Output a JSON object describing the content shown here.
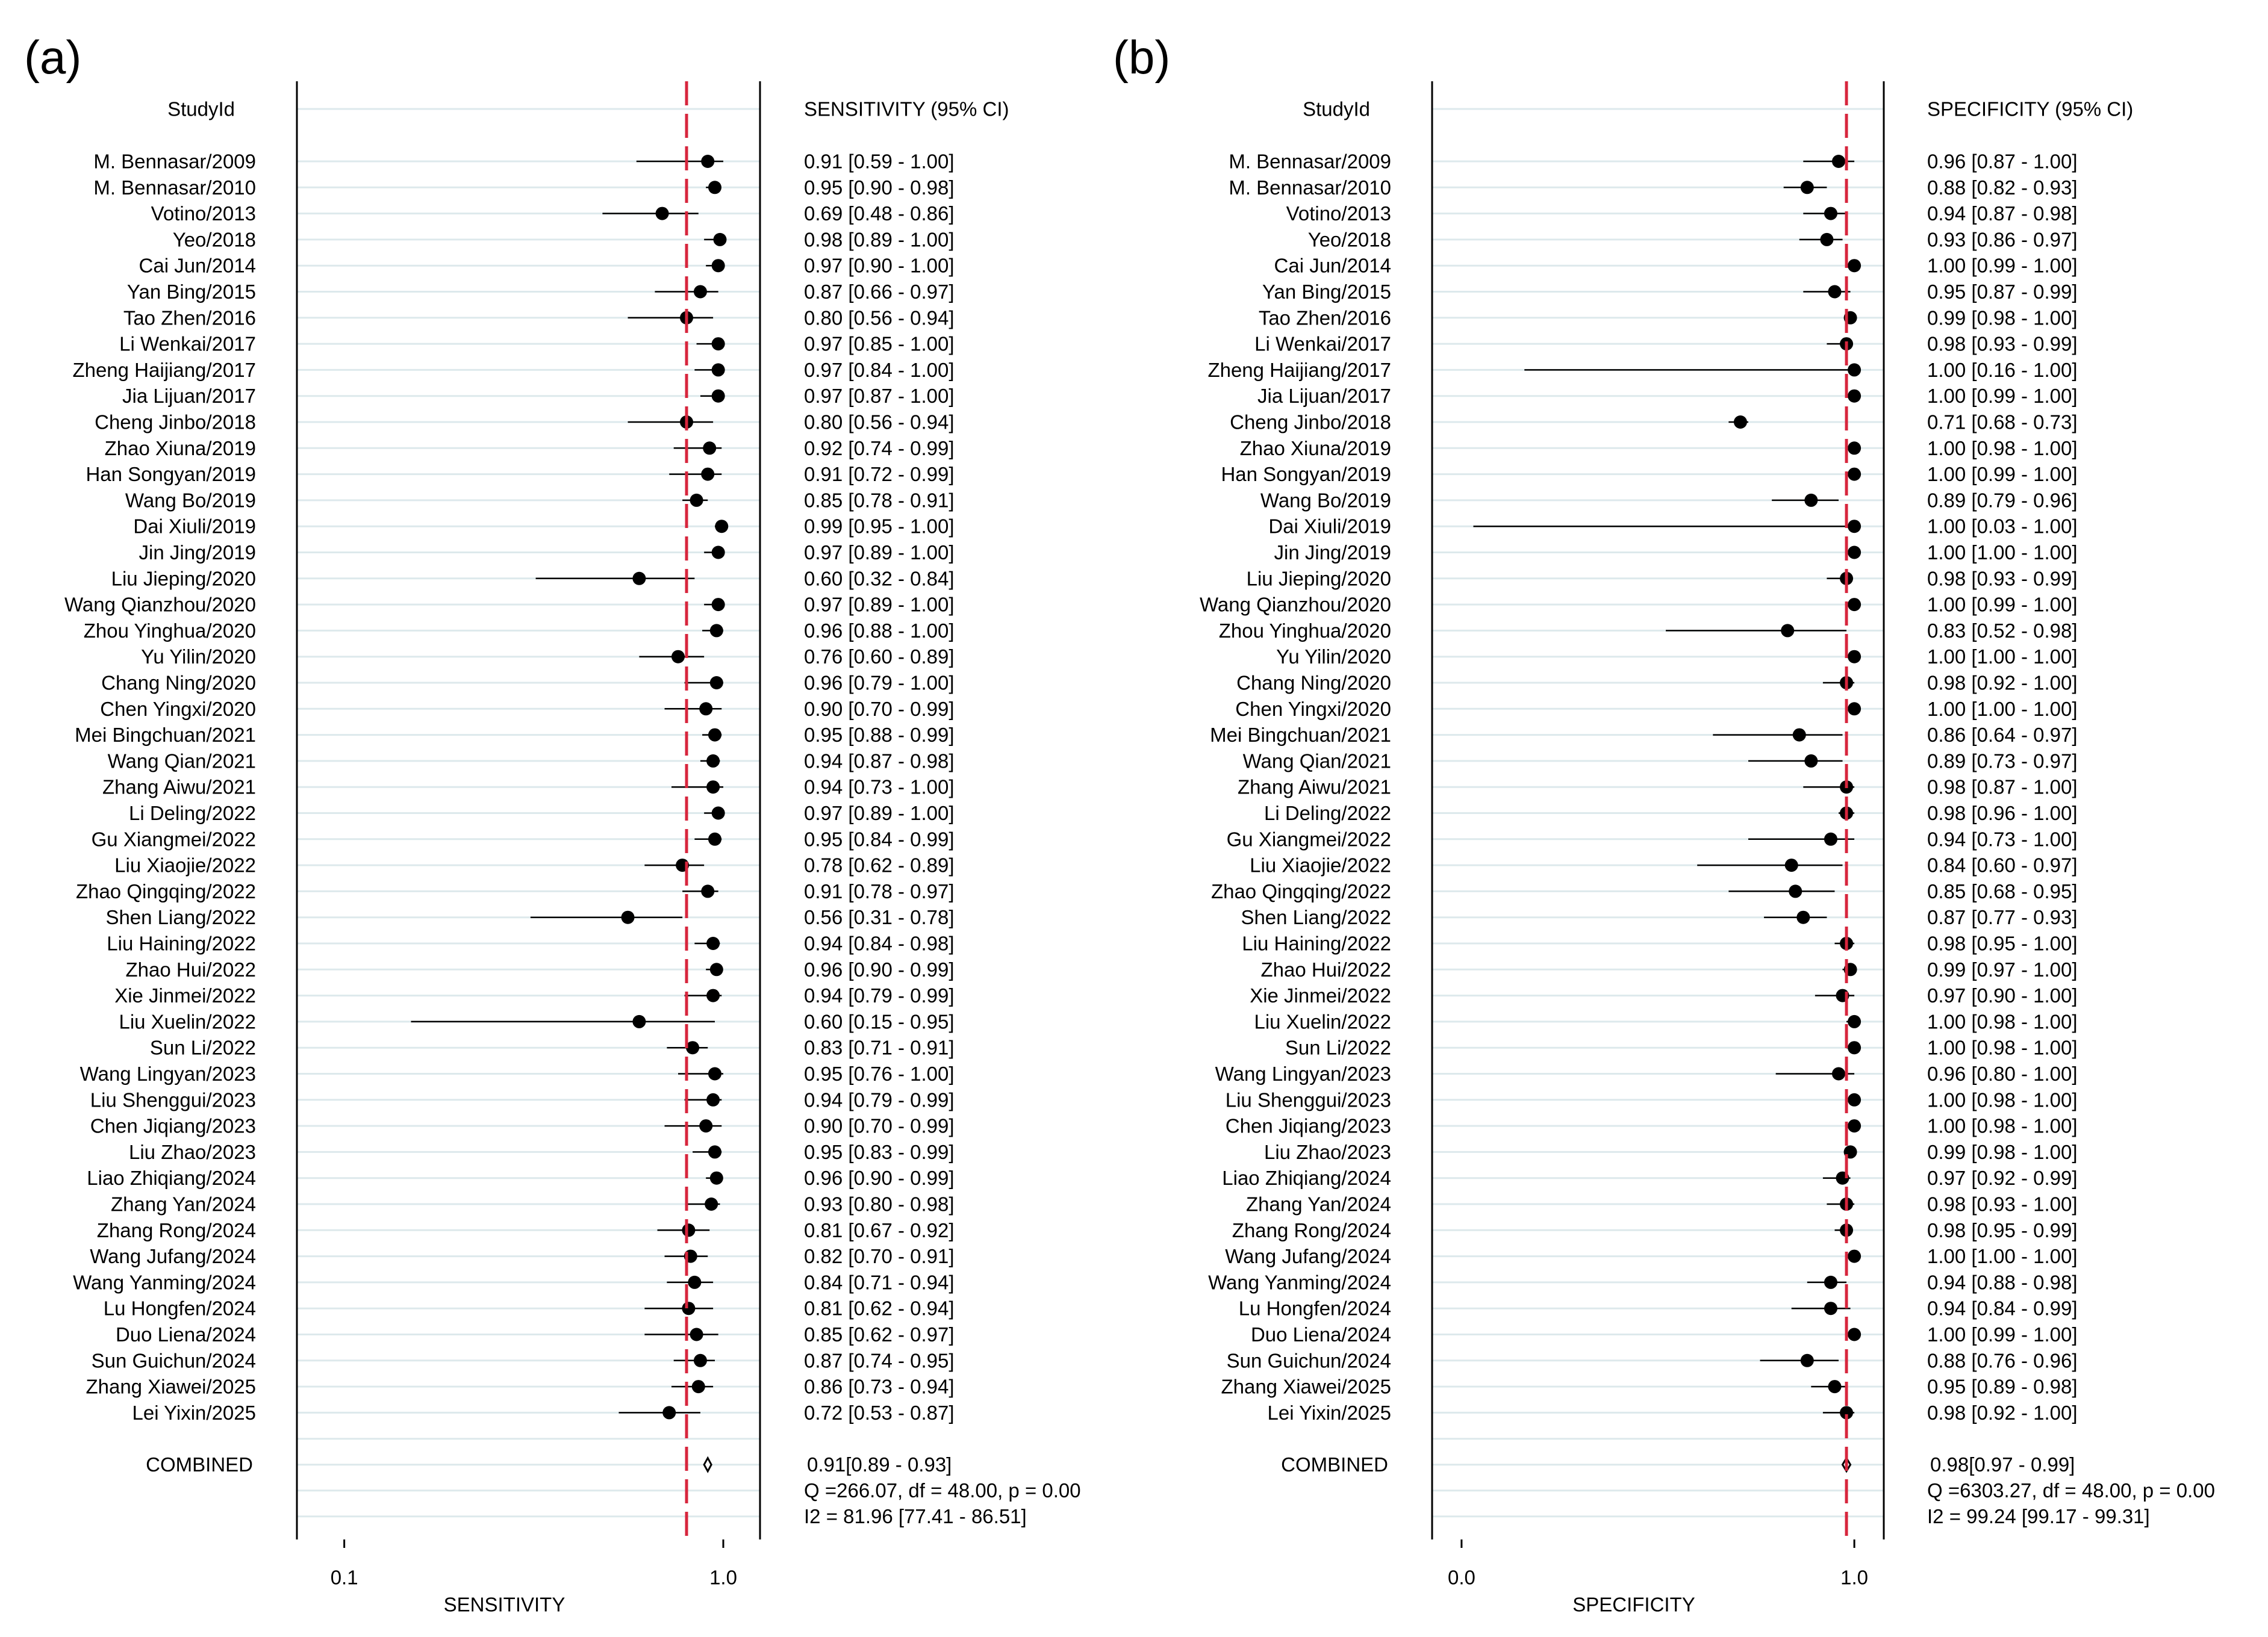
{
  "chart_data": [
    {
      "type": "forest",
      "panel_label": "(a)",
      "title": "",
      "xlabel": "SENSITIVITY",
      "scale": "log",
      "x_ticks": [
        "0.1",
        "1.0"
      ],
      "xlim": [
        0.075,
        1.25
      ],
      "reference_line": 0.8,
      "studyid_header": "StudyId",
      "ci_header": "SENSITIVITY (95% CI)",
      "studies": [
        {
          "study": "M. Bennasar/2009",
          "est": 0.91,
          "lo": 0.59,
          "hi": 1.0,
          "label": "0.91 [0.59 - 1.00]"
        },
        {
          "study": "M. Bennasar/2010",
          "est": 0.95,
          "lo": 0.9,
          "hi": 0.98,
          "label": "0.95 [0.90 - 0.98]"
        },
        {
          "study": "Votino/2013",
          "est": 0.69,
          "lo": 0.48,
          "hi": 0.86,
          "label": "0.69 [0.48 - 0.86]"
        },
        {
          "study": "Yeo/2018",
          "est": 0.98,
          "lo": 0.89,
          "hi": 1.0,
          "label": "0.98 [0.89 - 1.00]"
        },
        {
          "study": "Cai Jun/2014",
          "est": 0.97,
          "lo": 0.9,
          "hi": 1.0,
          "label": "0.97 [0.90 - 1.00]"
        },
        {
          "study": "Yan Bing/2015",
          "est": 0.87,
          "lo": 0.66,
          "hi": 0.97,
          "label": "0.87 [0.66 - 0.97]"
        },
        {
          "study": "Tao Zhen/2016",
          "est": 0.8,
          "lo": 0.56,
          "hi": 0.94,
          "label": "0.80 [0.56 - 0.94]"
        },
        {
          "study": "Li Wenkai/2017",
          "est": 0.97,
          "lo": 0.85,
          "hi": 1.0,
          "label": "0.97 [0.85 - 1.00]"
        },
        {
          "study": "Zheng Haijiang/2017",
          "est": 0.97,
          "lo": 0.84,
          "hi": 1.0,
          "label": "0.97 [0.84 - 1.00]"
        },
        {
          "study": "Jia Lijuan/2017",
          "est": 0.97,
          "lo": 0.87,
          "hi": 1.0,
          "label": "0.97 [0.87 - 1.00]"
        },
        {
          "study": "Cheng Jinbo/2018",
          "est": 0.8,
          "lo": 0.56,
          "hi": 0.94,
          "label": "0.80 [0.56 - 0.94]"
        },
        {
          "study": "Zhao Xiuna/2019",
          "est": 0.92,
          "lo": 0.74,
          "hi": 0.99,
          "label": "0.92 [0.74 - 0.99]"
        },
        {
          "study": "Han Songyan/2019",
          "est": 0.91,
          "lo": 0.72,
          "hi": 0.99,
          "label": "0.91 [0.72 - 0.99]"
        },
        {
          "study": "Wang Bo/2019",
          "est": 0.85,
          "lo": 0.78,
          "hi": 0.91,
          "label": "0.85 [0.78 - 0.91]"
        },
        {
          "study": "Dai Xiuli/2019",
          "est": 0.99,
          "lo": 0.95,
          "hi": 1.0,
          "label": "0.99 [0.95 - 1.00]"
        },
        {
          "study": "Jin Jing/2019",
          "est": 0.97,
          "lo": 0.89,
          "hi": 1.0,
          "label": "0.97 [0.89 - 1.00]"
        },
        {
          "study": "Liu Jieping/2020",
          "est": 0.6,
          "lo": 0.32,
          "hi": 0.84,
          "label": "0.60 [0.32 - 0.84]"
        },
        {
          "study": "Wang Qianzhou/2020",
          "est": 0.97,
          "lo": 0.89,
          "hi": 1.0,
          "label": "0.97 [0.89 - 1.00]"
        },
        {
          "study": "Zhou Yinghua/2020",
          "est": 0.96,
          "lo": 0.88,
          "hi": 1.0,
          "label": "0.96 [0.88 - 1.00]"
        },
        {
          "study": "Yu Yilin/2020",
          "est": 0.76,
          "lo": 0.6,
          "hi": 0.89,
          "label": "0.76 [0.60 - 0.89]"
        },
        {
          "study": "Chang Ning/2020",
          "est": 0.96,
          "lo": 0.79,
          "hi": 1.0,
          "label": "0.96 [0.79 - 1.00]"
        },
        {
          "study": "Chen Yingxi/2020",
          "est": 0.9,
          "lo": 0.7,
          "hi": 0.99,
          "label": "0.90 [0.70 - 0.99]"
        },
        {
          "study": "Mei Bingchuan/2021",
          "est": 0.95,
          "lo": 0.88,
          "hi": 0.99,
          "label": "0.95 [0.88 - 0.99]"
        },
        {
          "study": "Wang Qian/2021",
          "est": 0.94,
          "lo": 0.87,
          "hi": 0.98,
          "label": "0.94 [0.87 - 0.98]"
        },
        {
          "study": "Zhang Aiwu/2021",
          "est": 0.94,
          "lo": 0.73,
          "hi": 1.0,
          "label": "0.94 [0.73 - 1.00]"
        },
        {
          "study": "Li Deling/2022",
          "est": 0.97,
          "lo": 0.89,
          "hi": 1.0,
          "label": "0.97 [0.89 - 1.00]"
        },
        {
          "study": "Gu Xiangmei/2022",
          "est": 0.95,
          "lo": 0.84,
          "hi": 0.99,
          "label": "0.95 [0.84 - 0.99]"
        },
        {
          "study": "Liu Xiaojie/2022",
          "est": 0.78,
          "lo": 0.62,
          "hi": 0.89,
          "label": "0.78 [0.62 - 0.89]"
        },
        {
          "study": "Zhao Qingqing/2022",
          "est": 0.91,
          "lo": 0.78,
          "hi": 0.97,
          "label": "0.91 [0.78 - 0.97]"
        },
        {
          "study": "Shen Liang/2022",
          "est": 0.56,
          "lo": 0.31,
          "hi": 0.78,
          "label": "0.56 [0.31 - 0.78]"
        },
        {
          "study": "Liu Haining/2022",
          "est": 0.94,
          "lo": 0.84,
          "hi": 0.98,
          "label": "0.94 [0.84 - 0.98]"
        },
        {
          "study": "Zhao Hui/2022",
          "est": 0.96,
          "lo": 0.9,
          "hi": 0.99,
          "label": "0.96 [0.90 - 0.99]"
        },
        {
          "study": "Xie Jinmei/2022",
          "est": 0.94,
          "lo": 0.79,
          "hi": 0.99,
          "label": "0.94 [0.79 - 0.99]"
        },
        {
          "study": "Liu Xuelin/2022",
          "est": 0.6,
          "lo": 0.15,
          "hi": 0.95,
          "label": "0.60 [0.15 - 0.95]"
        },
        {
          "study": "Sun Li/2022",
          "est": 0.83,
          "lo": 0.71,
          "hi": 0.91,
          "label": "0.83 [0.71 - 0.91]"
        },
        {
          "study": "Wang Lingyan/2023",
          "est": 0.95,
          "lo": 0.76,
          "hi": 1.0,
          "label": "0.95 [0.76 - 1.00]"
        },
        {
          "study": "Liu Shenggui/2023",
          "est": 0.94,
          "lo": 0.79,
          "hi": 0.99,
          "label": "0.94 [0.79 - 0.99]"
        },
        {
          "study": "Chen Jiqiang/2023",
          "est": 0.9,
          "lo": 0.7,
          "hi": 0.99,
          "label": "0.90 [0.70 - 0.99]"
        },
        {
          "study": "Liu Zhao/2023",
          "est": 0.95,
          "lo": 0.83,
          "hi": 0.99,
          "label": "0.95 [0.83 - 0.99]"
        },
        {
          "study": "Liao Zhiqiang/2024",
          "est": 0.96,
          "lo": 0.9,
          "hi": 0.99,
          "label": "0.96 [0.90 - 0.99]"
        },
        {
          "study": "Zhang Yan/2024",
          "est": 0.93,
          "lo": 0.8,
          "hi": 0.98,
          "label": "0.93 [0.80 - 0.98]"
        },
        {
          "study": "Zhang Rong/2024",
          "est": 0.81,
          "lo": 0.67,
          "hi": 0.92,
          "label": "0.81 [0.67 - 0.92]"
        },
        {
          "study": "Wang Jufang/2024",
          "est": 0.82,
          "lo": 0.7,
          "hi": 0.91,
          "label": "0.82 [0.70 - 0.91]"
        },
        {
          "study": "Wang Yanming/2024",
          "est": 0.84,
          "lo": 0.71,
          "hi": 0.94,
          "label": "0.84 [0.71 - 0.94]"
        },
        {
          "study": "Lu Hongfen/2024",
          "est": 0.81,
          "lo": 0.62,
          "hi": 0.94,
          "label": "0.81 [0.62 - 0.94]"
        },
        {
          "study": "Duo Liena/2024",
          "est": 0.85,
          "lo": 0.62,
          "hi": 0.97,
          "label": "0.85 [0.62 - 0.97]"
        },
        {
          "study": "Sun Guichun/2024",
          "est": 0.87,
          "lo": 0.74,
          "hi": 0.95,
          "label": "0.87 [0.74 - 0.95]"
        },
        {
          "study": "Zhang Xiawei/2025",
          "est": 0.86,
          "lo": 0.73,
          "hi": 0.94,
          "label": "0.86 [0.73 - 0.94]"
        },
        {
          "study": "Lei Yixin/2025",
          "est": 0.72,
          "lo": 0.53,
          "hi": 0.87,
          "label": "0.72 [0.53 - 0.87]"
        }
      ],
      "combined": {
        "label": "COMBINED",
        "est": 0.91,
        "lo": 0.89,
        "hi": 0.93,
        "text": "0.91[0.89 - 0.93]"
      },
      "heterogeneity": [
        "Q =266.07, df = 48.00, p =  0.00",
        "I2 = 81.96 [77.41 - 86.51]"
      ]
    },
    {
      "type": "forest",
      "panel_label": "(b)",
      "title": "",
      "xlabel": "SPECIFICITY",
      "scale": "linear",
      "x_ticks": [
        "0.0",
        "1.0"
      ],
      "xlim": [
        -0.075,
        1.075
      ],
      "reference_line": 0.98,
      "studyid_header": "StudyId",
      "ci_header": "SPECIFICITY (95% CI)",
      "studies": [
        {
          "study": "M. Bennasar/2009",
          "est": 0.96,
          "lo": 0.87,
          "hi": 1.0,
          "label": "0.96 [0.87 - 1.00]"
        },
        {
          "study": "M. Bennasar/2010",
          "est": 0.88,
          "lo": 0.82,
          "hi": 0.93,
          "label": "0.88 [0.82 - 0.93]"
        },
        {
          "study": "Votino/2013",
          "est": 0.94,
          "lo": 0.87,
          "hi": 0.98,
          "label": "0.94 [0.87 - 0.98]"
        },
        {
          "study": "Yeo/2018",
          "est": 0.93,
          "lo": 0.86,
          "hi": 0.97,
          "label": "0.93 [0.86 - 0.97]"
        },
        {
          "study": "Cai Jun/2014",
          "est": 1.0,
          "lo": 0.99,
          "hi": 1.0,
          "label": "1.00 [0.99 - 1.00]"
        },
        {
          "study": "Yan Bing/2015",
          "est": 0.95,
          "lo": 0.87,
          "hi": 0.99,
          "label": "0.95 [0.87 - 0.99]"
        },
        {
          "study": "Tao Zhen/2016",
          "est": 0.99,
          "lo": 0.98,
          "hi": 1.0,
          "label": "0.99 [0.98 - 1.00]"
        },
        {
          "study": "Li Wenkai/2017",
          "est": 0.98,
          "lo": 0.93,
          "hi": 0.99,
          "label": "0.98 [0.93 - 0.99]"
        },
        {
          "study": "Zheng Haijiang/2017",
          "est": 1.0,
          "lo": 0.16,
          "hi": 1.0,
          "label": "1.00 [0.16 - 1.00]"
        },
        {
          "study": "Jia Lijuan/2017",
          "est": 1.0,
          "lo": 0.99,
          "hi": 1.0,
          "label": "1.00 [0.99 - 1.00]"
        },
        {
          "study": "Cheng Jinbo/2018",
          "est": 0.71,
          "lo": 0.68,
          "hi": 0.73,
          "label": "0.71 [0.68 - 0.73]"
        },
        {
          "study": "Zhao Xiuna/2019",
          "est": 1.0,
          "lo": 0.98,
          "hi": 1.0,
          "label": "1.00 [0.98 - 1.00]"
        },
        {
          "study": "Han Songyan/2019",
          "est": 1.0,
          "lo": 0.99,
          "hi": 1.0,
          "label": "1.00 [0.99 - 1.00]"
        },
        {
          "study": "Wang Bo/2019",
          "est": 0.89,
          "lo": 0.79,
          "hi": 0.96,
          "label": "0.89 [0.79 - 0.96]"
        },
        {
          "study": "Dai Xiuli/2019",
          "est": 1.0,
          "lo": 0.03,
          "hi": 1.0,
          "label": "1.00 [0.03 - 1.00]"
        },
        {
          "study": "Jin Jing/2019",
          "est": 1.0,
          "lo": 1.0,
          "hi": 1.0,
          "label": "1.00 [1.00 - 1.00]"
        },
        {
          "study": "Liu Jieping/2020",
          "est": 0.98,
          "lo": 0.93,
          "hi": 0.99,
          "label": "0.98 [0.93 - 0.99]"
        },
        {
          "study": "Wang Qianzhou/2020",
          "est": 1.0,
          "lo": 0.99,
          "hi": 1.0,
          "label": "1.00 [0.99 - 1.00]"
        },
        {
          "study": "Zhou Yinghua/2020",
          "est": 0.83,
          "lo": 0.52,
          "hi": 0.98,
          "label": "0.83 [0.52 - 0.98]"
        },
        {
          "study": "Yu Yilin/2020",
          "est": 1.0,
          "lo": 1.0,
          "hi": 1.0,
          "label": "1.00 [1.00 - 1.00]"
        },
        {
          "study": "Chang Ning/2020",
          "est": 0.98,
          "lo": 0.92,
          "hi": 1.0,
          "label": "0.98 [0.92 - 1.00]"
        },
        {
          "study": "Chen Yingxi/2020",
          "est": 1.0,
          "lo": 1.0,
          "hi": 1.0,
          "label": "1.00 [1.00 - 1.00]"
        },
        {
          "study": "Mei Bingchuan/2021",
          "est": 0.86,
          "lo": 0.64,
          "hi": 0.97,
          "label": "0.86 [0.64 - 0.97]"
        },
        {
          "study": "Wang Qian/2021",
          "est": 0.89,
          "lo": 0.73,
          "hi": 0.97,
          "label": "0.89 [0.73 - 0.97]"
        },
        {
          "study": "Zhang Aiwu/2021",
          "est": 0.98,
          "lo": 0.87,
          "hi": 1.0,
          "label": "0.98 [0.87 - 1.00]"
        },
        {
          "study": "Li Deling/2022",
          "est": 0.98,
          "lo": 0.96,
          "hi": 1.0,
          "label": "0.98 [0.96 - 1.00]"
        },
        {
          "study": "Gu Xiangmei/2022",
          "est": 0.94,
          "lo": 0.73,
          "hi": 1.0,
          "label": "0.94 [0.73 - 1.00]"
        },
        {
          "study": "Liu Xiaojie/2022",
          "est": 0.84,
          "lo": 0.6,
          "hi": 0.97,
          "label": "0.84 [0.60 - 0.97]"
        },
        {
          "study": "Zhao Qingqing/2022",
          "est": 0.85,
          "lo": 0.68,
          "hi": 0.95,
          "label": "0.85 [0.68 - 0.95]"
        },
        {
          "study": "Shen Liang/2022",
          "est": 0.87,
          "lo": 0.77,
          "hi": 0.93,
          "label": "0.87 [0.77 - 0.93]"
        },
        {
          "study": "Liu Haining/2022",
          "est": 0.98,
          "lo": 0.95,
          "hi": 1.0,
          "label": "0.98 [0.95 - 1.00]"
        },
        {
          "study": "Zhao Hui/2022",
          "est": 0.99,
          "lo": 0.97,
          "hi": 1.0,
          "label": "0.99 [0.97 - 1.00]"
        },
        {
          "study": "Xie Jinmei/2022",
          "est": 0.97,
          "lo": 0.9,
          "hi": 1.0,
          "label": "0.97 [0.90 - 1.00]"
        },
        {
          "study": "Liu Xuelin/2022",
          "est": 1.0,
          "lo": 0.98,
          "hi": 1.0,
          "label": "1.00 [0.98 - 1.00]"
        },
        {
          "study": "Sun Li/2022",
          "est": 1.0,
          "lo": 0.98,
          "hi": 1.0,
          "label": "1.00 [0.98 - 1.00]"
        },
        {
          "study": "Wang Lingyan/2023",
          "est": 0.96,
          "lo": 0.8,
          "hi": 1.0,
          "label": "0.96 [0.80 - 1.00]"
        },
        {
          "study": "Liu Shenggui/2023",
          "est": 1.0,
          "lo": 0.98,
          "hi": 1.0,
          "label": "1.00 [0.98 - 1.00]"
        },
        {
          "study": "Chen Jiqiang/2023",
          "est": 1.0,
          "lo": 0.98,
          "hi": 1.0,
          "label": "1.00 [0.98 - 1.00]"
        },
        {
          "study": "Liu Zhao/2023",
          "est": 0.99,
          "lo": 0.98,
          "hi": 1.0,
          "label": "0.99 [0.98 - 1.00]"
        },
        {
          "study": "Liao Zhiqiang/2024",
          "est": 0.97,
          "lo": 0.92,
          "hi": 0.99,
          "label": "0.97 [0.92 - 0.99]"
        },
        {
          "study": "Zhang Yan/2024",
          "est": 0.98,
          "lo": 0.93,
          "hi": 1.0,
          "label": "0.98 [0.93 - 1.00]"
        },
        {
          "study": "Zhang Rong/2024",
          "est": 0.98,
          "lo": 0.95,
          "hi": 0.99,
          "label": "0.98 [0.95 - 0.99]"
        },
        {
          "study": "Wang Jufang/2024",
          "est": 1.0,
          "lo": 1.0,
          "hi": 1.0,
          "label": "1.00 [1.00 - 1.00]"
        },
        {
          "study": "Wang Yanming/2024",
          "est": 0.94,
          "lo": 0.88,
          "hi": 0.98,
          "label": "0.94 [0.88 - 0.98]"
        },
        {
          "study": "Lu Hongfen/2024",
          "est": 0.94,
          "lo": 0.84,
          "hi": 0.99,
          "label": "0.94 [0.84 - 0.99]"
        },
        {
          "study": "Duo Liena/2024",
          "est": 1.0,
          "lo": 0.99,
          "hi": 1.0,
          "label": "1.00 [0.99 - 1.00]"
        },
        {
          "study": "Sun Guichun/2024",
          "est": 0.88,
          "lo": 0.76,
          "hi": 0.96,
          "label": "0.88 [0.76 - 0.96]"
        },
        {
          "study": "Zhang Xiawei/2025",
          "est": 0.95,
          "lo": 0.89,
          "hi": 0.98,
          "label": "0.95 [0.89 - 0.98]"
        },
        {
          "study": "Lei Yixin/2025",
          "est": 0.98,
          "lo": 0.92,
          "hi": 1.0,
          "label": "0.98 [0.92 - 1.00]"
        }
      ],
      "combined": {
        "label": "COMBINED",
        "est": 0.98,
        "lo": 0.97,
        "hi": 0.99,
        "text": "0.98[0.97 - 0.99]"
      },
      "heterogeneity": [
        "Q =6303.27, df = 48.00, p =  0.00",
        "I2 = 99.24 [99.17 - 99.31]"
      ]
    }
  ]
}
